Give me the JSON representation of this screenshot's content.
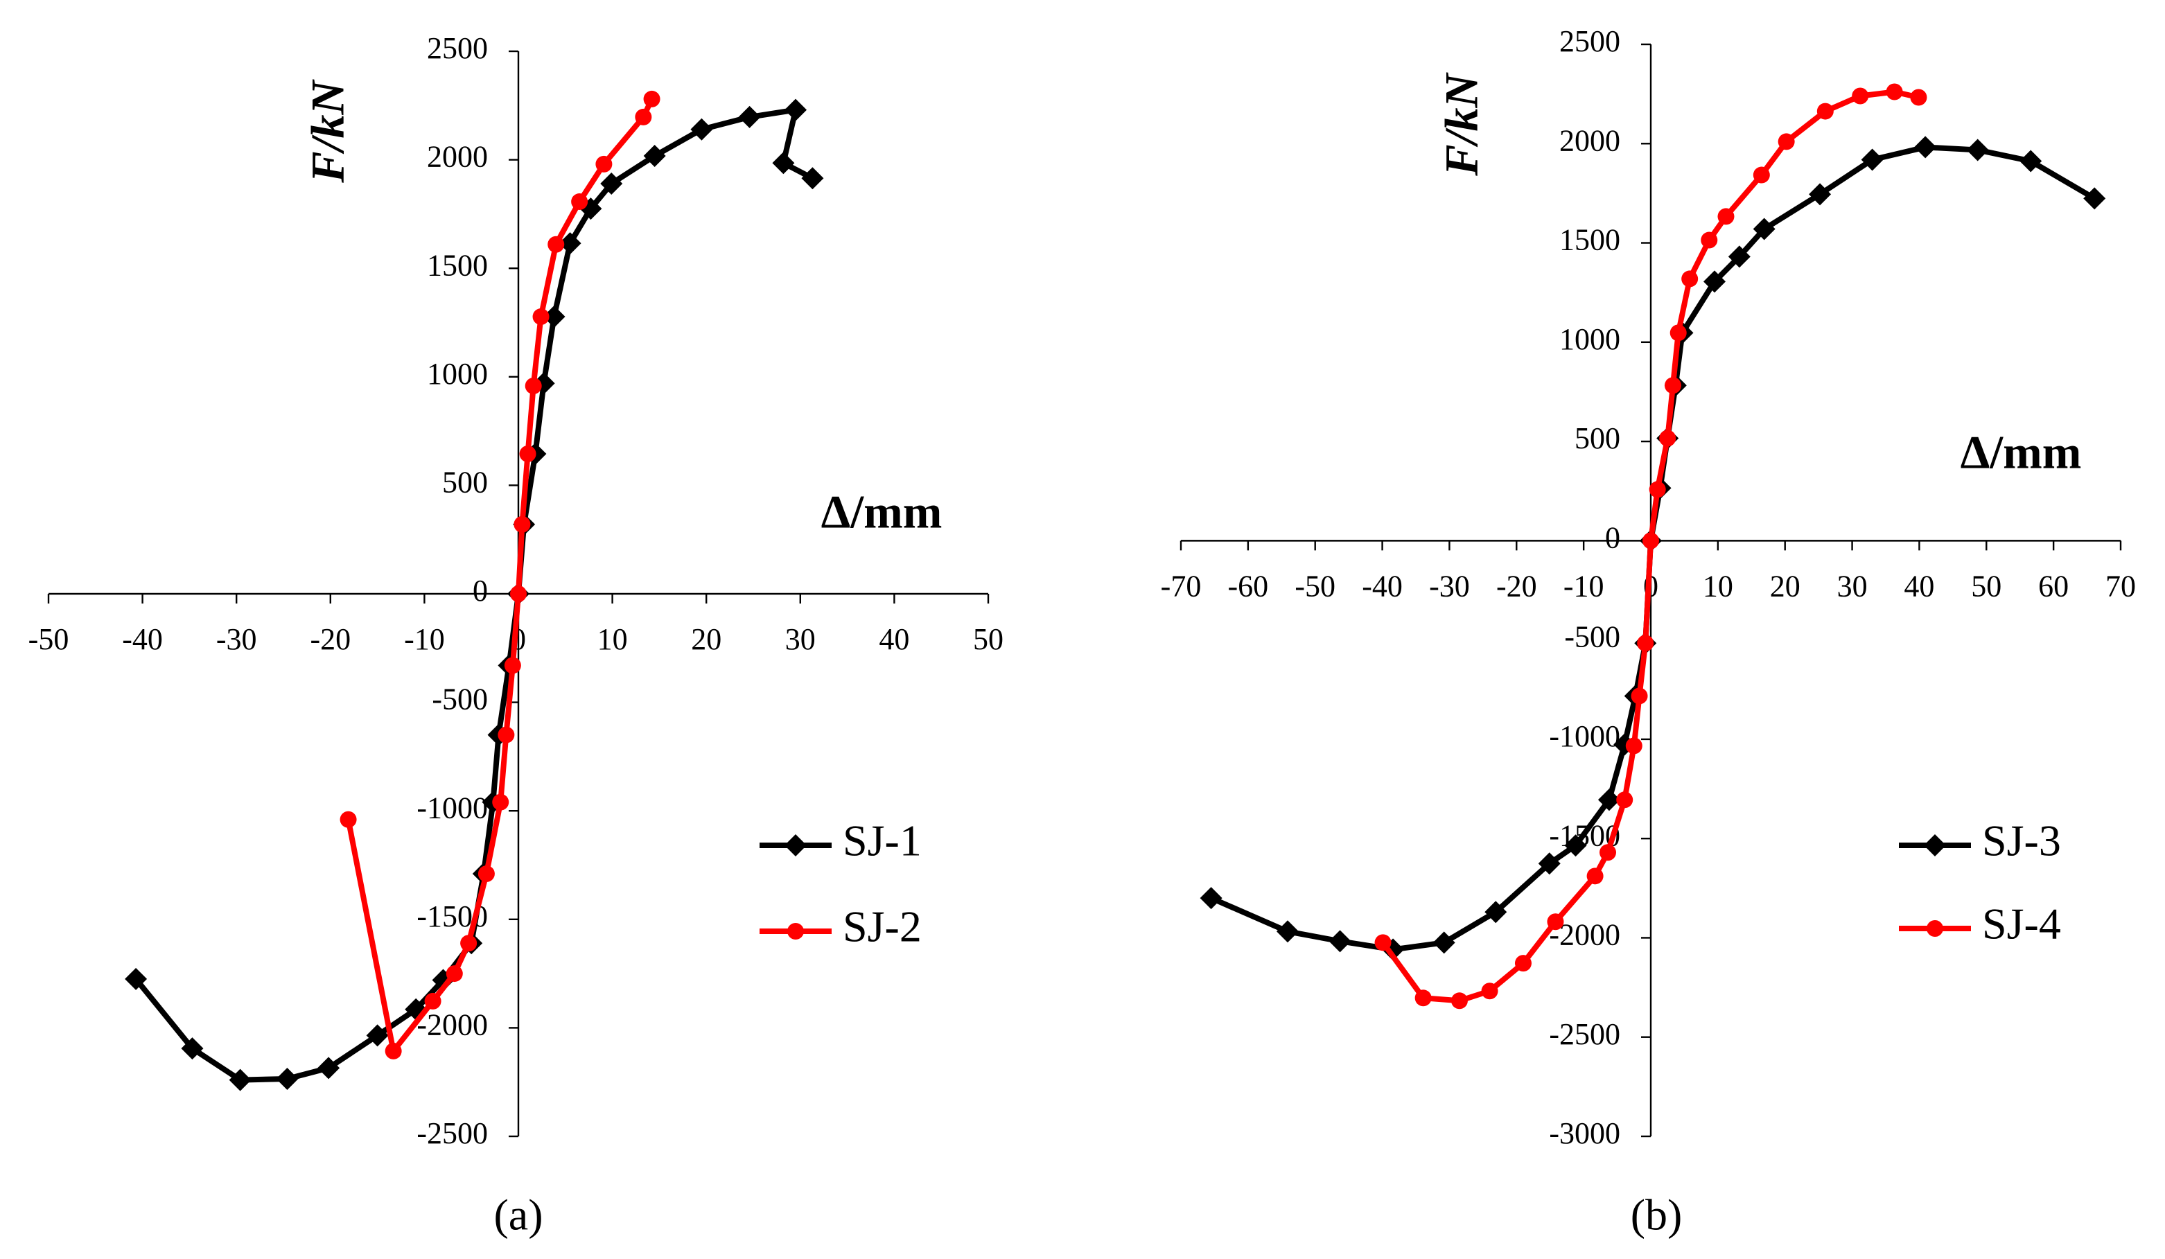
{
  "chart_data": [
    {
      "type": "line",
      "caption": "(a)",
      "x_label": "Δ/mm",
      "y_label": "F/kN",
      "xlim": [
        -50,
        50
      ],
      "ylim": [
        -2500,
        2500
      ],
      "xticks": [
        -50,
        -40,
        -30,
        -20,
        -10,
        0,
        10,
        20,
        30,
        40,
        50
      ],
      "yticks": [
        -2500,
        -2000,
        -1500,
        -1000,
        -500,
        0,
        500,
        1000,
        1500,
        2000,
        2500
      ],
      "series": [
        {
          "name": "SJ-1",
          "color": "#000000",
          "marker": "diamond",
          "x": [
            -40.7,
            -34.7,
            -29.6,
            -24.6,
            -20.2,
            -15,
            -10.9,
            -8,
            -5,
            -3.7,
            -2.7,
            -2.1,
            -1,
            0,
            0.6,
            1.8,
            2.7,
            3.8,
            5.5,
            7.7,
            9.9,
            14.5,
            19.5,
            24.6,
            29.5,
            28.2,
            31.3
          ],
          "values": [
            -1775,
            -2095,
            -2240,
            -2235,
            -2185,
            -2035,
            -1915,
            -1780,
            -1610,
            -1290,
            -960,
            -650,
            -330,
            0,
            320,
            645,
            970,
            1277,
            1615,
            1775,
            1890,
            2018,
            2140,
            2197,
            2230,
            1985,
            1915
          ]
        },
        {
          "name": "SJ-2",
          "color": "#ff0000",
          "marker": "circle",
          "x": [
            -18.1,
            -13.3,
            -9.1,
            -6.8,
            -5.3,
            -3.4,
            -1.9,
            -1.3,
            -0.6,
            0,
            0.4,
            1,
            1.6,
            2.4,
            4,
            6.5,
            9.1,
            13.3,
            14.2
          ],
          "values": [
            -1040,
            -2107,
            -1877,
            -1750,
            -1610,
            -1290,
            -960,
            -650,
            -330,
            0,
            320,
            645,
            958,
            1277,
            1610,
            1807,
            1980,
            2197,
            2280
          ]
        }
      ]
    },
    {
      "type": "line",
      "caption": "(b)",
      "x_label": "Δ/mm",
      "y_label": "F/kN",
      "xlim": [
        -70,
        70
      ],
      "ylim": [
        -3000,
        2500
      ],
      "xticks": [
        -70,
        -60,
        -50,
        -40,
        -30,
        -20,
        -10,
        0,
        10,
        20,
        30,
        40,
        50,
        60,
        70
      ],
      "yticks": [
        -3000,
        -2500,
        -2000,
        -1500,
        -1000,
        -500,
        0,
        500,
        1000,
        1500,
        2000,
        2500
      ],
      "series": [
        {
          "name": "SJ-3",
          "color": "#000000",
          "marker": "diamond",
          "x": [
            -65.5,
            -54.1,
            -46.3,
            -38.4,
            -30.8,
            -23.1,
            -15.1,
            -11.2,
            -6.2,
            -3.9,
            -2.3,
            -0.8,
            0,
            1.4,
            2.5,
            3.7,
            4.7,
            9.5,
            13.2,
            16.9,
            25.2,
            33,
            40.9,
            48.7,
            56.6,
            66.1
          ],
          "values": [
            -1800,
            -1968,
            -2017,
            -2059,
            -2024,
            -1870,
            -1626,
            -1535,
            -1305,
            -1026,
            -782,
            -516,
            0,
            265,
            516,
            782,
            1047,
            1305,
            1431,
            1570,
            1745,
            1919,
            1982,
            1968,
            1912,
            1724
          ]
        },
        {
          "name": "SJ-4",
          "color": "#ff0000",
          "marker": "circle",
          "x": [
            -39.9,
            -33.9,
            -28.5,
            -24,
            -19,
            -14.2,
            -8.3,
            -6.4,
            -3.9,
            -2.5,
            -1.7,
            -0.8,
            0,
            1,
            2.5,
            3.3,
            4.1,
            5.8,
            8.7,
            11.2,
            16.5,
            20.2,
            26,
            31.2,
            36.3,
            39.9
          ],
          "values": [
            -2024,
            -2303,
            -2317,
            -2268,
            -2128,
            -1919,
            -1689,
            -1570,
            -1305,
            -1033,
            -782,
            -516,
            0,
            258,
            516,
            782,
            1047,
            1319,
            1514,
            1633,
            1842,
            2010,
            2163,
            2240,
            2261,
            2233
          ]
        }
      ]
    }
  ]
}
